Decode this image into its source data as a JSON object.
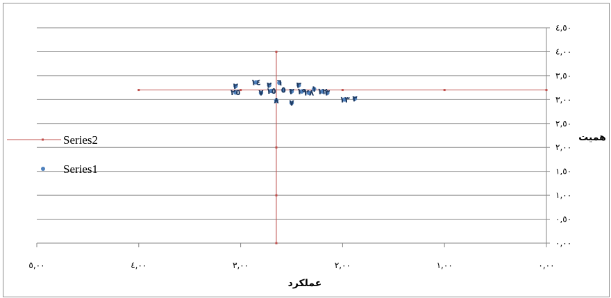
{
  "chart_data": {
    "type": "scatter",
    "title": "",
    "xlabel": "عملکرد",
    "ylabel": "همیت",
    "x_reversed": true,
    "xlim": [
      0,
      5
    ],
    "ylim": [
      0,
      4.5
    ],
    "x_ticks": [
      {
        "v": 5,
        "label": "٥,٠٠"
      },
      {
        "v": 4,
        "label": "٤,٠٠"
      },
      {
        "v": 3,
        "label": "٣,٠٠"
      },
      {
        "v": 2,
        "label": "٢,٠٠"
      },
      {
        "v": 1,
        "label": "١,٠٠"
      },
      {
        "v": 0,
        "label": "٠,٠٠"
      }
    ],
    "y_ticks": [
      {
        "v": 4.5,
        "label": "٤,٥٠"
      },
      {
        "v": 4.0,
        "label": "٤,٠٠"
      },
      {
        "v": 3.5,
        "label": "٣,٥٠"
      },
      {
        "v": 3.0,
        "label": "٣,٠٠"
      },
      {
        "v": 2.5,
        "label": "٢,٥٠"
      },
      {
        "v": 2.0,
        "label": "٢,٠٠"
      },
      {
        "v": 1.5,
        "label": "١,٥٠"
      },
      {
        "v": 1.0,
        "label": "١,٠٠"
      },
      {
        "v": 0.5,
        "label": "٠,٥٠"
      },
      {
        "v": 0.0,
        "label": "٠,٠٠"
      }
    ],
    "grid": true,
    "legend_position": "left",
    "series": [
      {
        "name": "Series2",
        "color": "#c0504d",
        "lines": [
          [
            [
              4.0,
              3.2
            ],
            [
              3.0,
              3.2
            ],
            [
              2.0,
              3.2
            ],
            [
              1.0,
              3.2
            ],
            [
              0.0,
              3.2
            ]
          ],
          [
            [
              2.65,
              4.0
            ],
            [
              2.65,
              3.0
            ],
            [
              2.65,
              2.0
            ],
            [
              2.65,
              1.0
            ],
            [
              2.65,
              0.0
            ]
          ]
        ]
      },
      {
        "name": "Series1",
        "color": "#4f81bd",
        "points": [
          {
            "x": 3.05,
            "y": 3.28,
            "label": "٢"
          },
          {
            "x": 3.05,
            "y": 3.15,
            "label": "٢٥"
          },
          {
            "x": 2.85,
            "y": 3.36,
            "label": "١٤"
          },
          {
            "x": 2.8,
            "y": 3.14,
            "label": "٧"
          },
          {
            "x": 2.7,
            "y": 3.18,
            "label": "١٥"
          },
          {
            "x": 2.72,
            "y": 3.3,
            "label": "٢"
          },
          {
            "x": 2.62,
            "y": 3.35,
            "label": "٦"
          },
          {
            "x": 2.58,
            "y": 3.2,
            "label": "٥"
          },
          {
            "x": 2.5,
            "y": 3.17,
            "label": "٣"
          },
          {
            "x": 2.43,
            "y": 3.3,
            "label": "٣"
          },
          {
            "x": 2.4,
            "y": 3.17,
            "label": "١٩"
          },
          {
            "x": 2.33,
            "y": 3.14,
            "label": "٢٨"
          },
          {
            "x": 2.28,
            "y": 3.22,
            "label": "١"
          },
          {
            "x": 2.2,
            "y": 3.17,
            "label": "١٢"
          },
          {
            "x": 2.15,
            "y": 3.14,
            "label": "٣"
          },
          {
            "x": 2.65,
            "y": 2.98,
            "label": "٨"
          },
          {
            "x": 2.5,
            "y": 2.93,
            "label": "٧"
          },
          {
            "x": 1.98,
            "y": 3.0,
            "label": "١٣"
          },
          {
            "x": 1.88,
            "y": 3.02,
            "label": "٢"
          }
        ]
      }
    ]
  }
}
